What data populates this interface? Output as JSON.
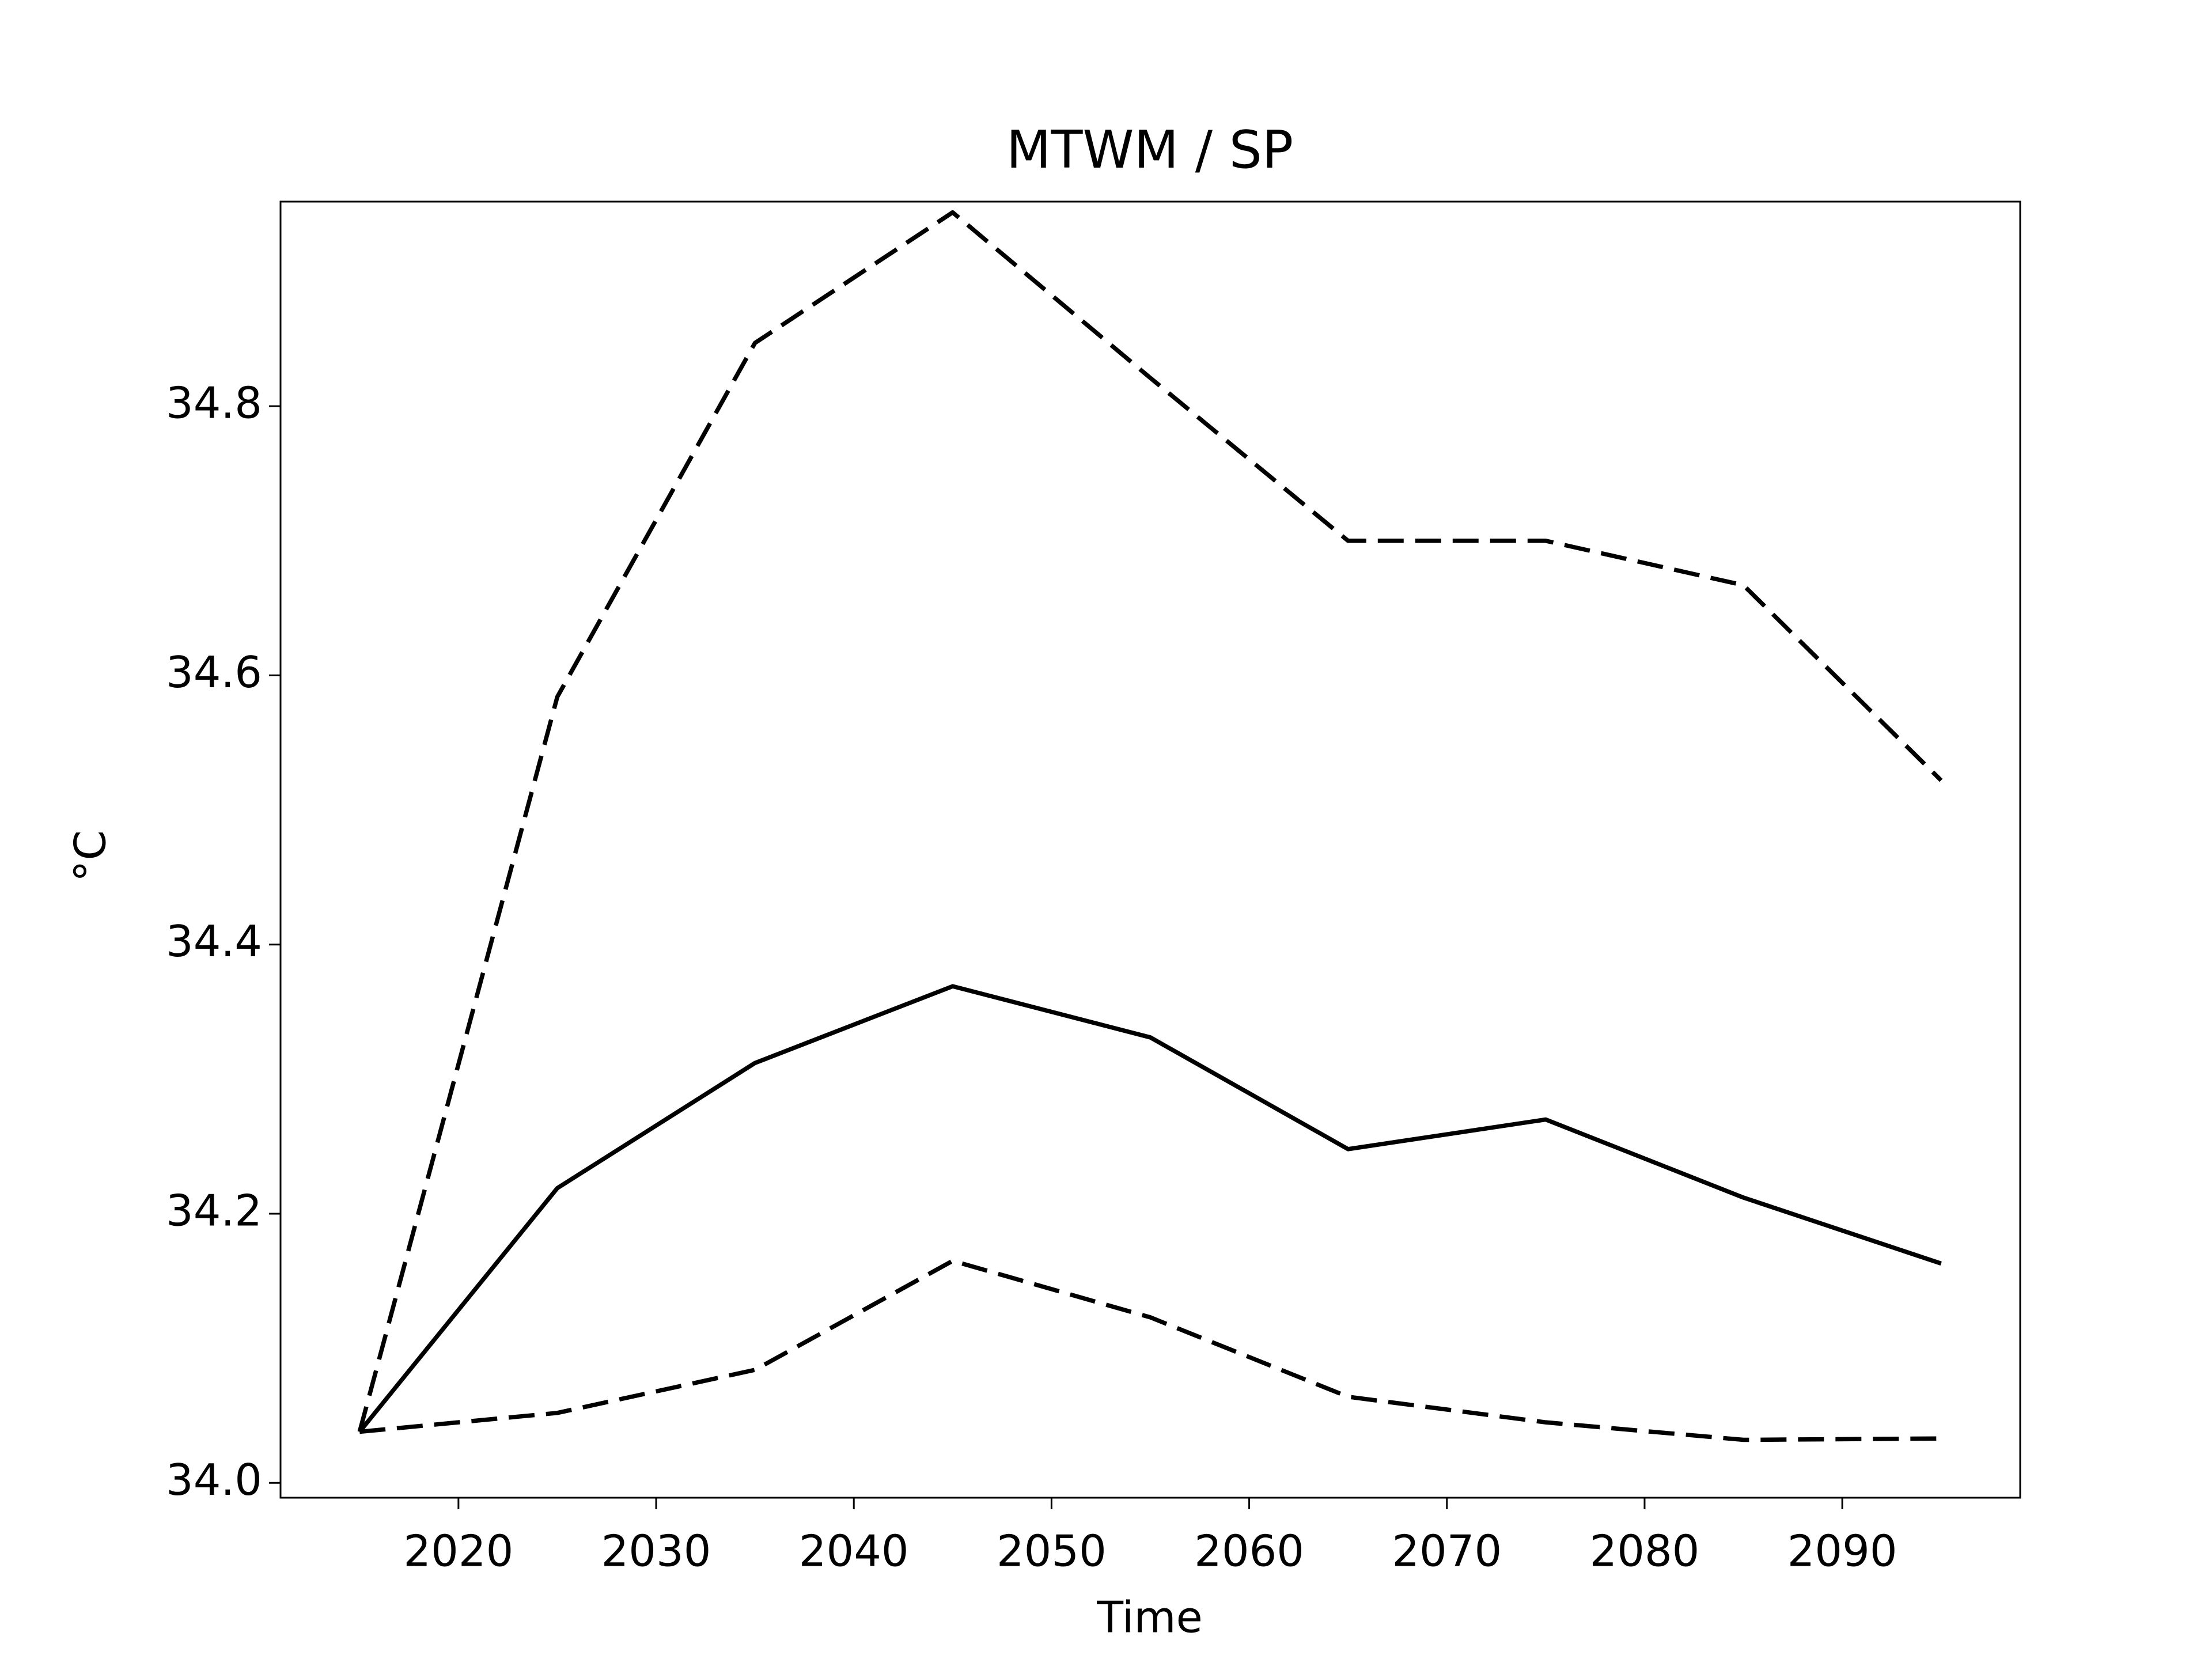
{
  "chart_data": {
    "type": "line",
    "title": "MTWM / SP",
    "x_label": "Time",
    "y_label": "°C",
    "x": [
      2015,
      2025,
      2035,
      2045,
      2055,
      2065,
      2075,
      2085,
      2095
    ],
    "series": [
      {
        "color": "#000000",
        "dashed": false,
        "values": [
          34.038,
          34.219,
          34.312,
          34.369,
          34.331,
          34.248,
          34.27,
          34.212,
          34.163
        ]
      },
      {
        "color": "#000000",
        "dashed": true,
        "values": [
          34.038,
          34.584,
          34.847,
          34.944,
          34.821,
          34.7,
          34.7,
          34.667,
          34.522
        ]
      },
      {
        "color": "#000000",
        "dashed": true,
        "values": [
          34.038,
          34.052,
          34.084,
          34.165,
          34.123,
          34.064,
          34.045,
          34.032,
          34.033
        ]
      }
    ],
    "xlim": [
      2011,
      2099
    ],
    "xticks": [
      2020,
      2030,
      2040,
      2050,
      2060,
      2070,
      2080,
      2090
    ],
    "ylim": [
      33.989,
      34.952
    ],
    "yticks": [
      {
        "value": 34.0,
        "label": "34.0"
      },
      34.2,
      34.4,
      34.6,
      34.8
    ],
    "grid": false
  }
}
